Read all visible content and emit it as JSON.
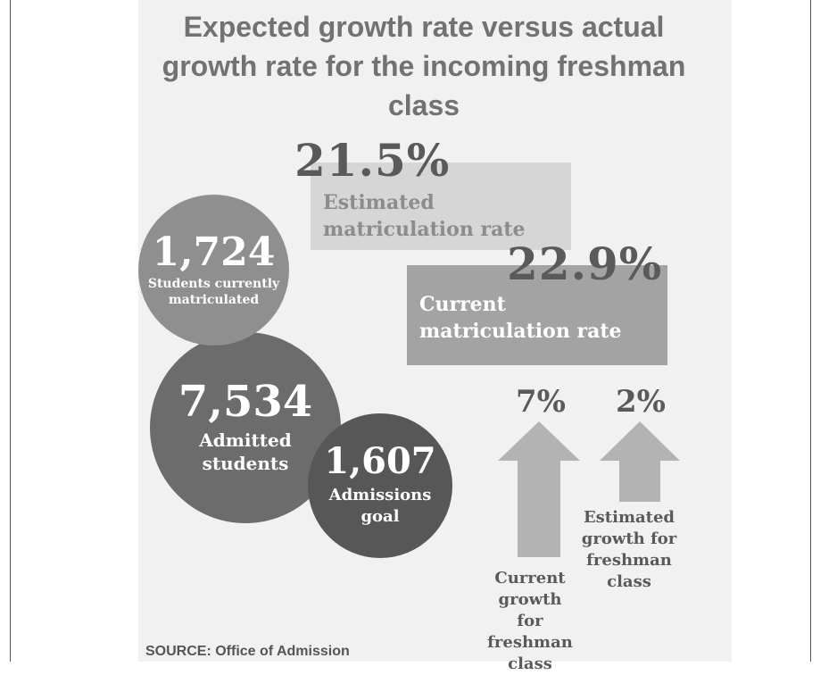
{
  "title_line1": "Expected growth rate versus actual",
  "title_line2": "growth rate for the incoming freshman",
  "title_line3": "class",
  "estimated_rate": {
    "value": "21.5%",
    "label_line1": "Estimated",
    "label_line2": "matriculation rate"
  },
  "current_rate": {
    "value": "22.9%",
    "label_line1": "Current",
    "label_line2": "matriculation rate"
  },
  "matriculated": {
    "value": "1,724",
    "label_line1": "Students currently",
    "label_line2": "matriculated"
  },
  "admitted": {
    "value": "7,534",
    "label_line1": "Admitted",
    "label_line2": "students"
  },
  "goal": {
    "value": "1,607",
    "label_line1": "Admissions",
    "label_line2": "goal"
  },
  "current_growth": {
    "value": "7%",
    "label_line1": "Current",
    "label_line2": "growth for",
    "label_line3": "freshman",
    "label_line4": "class"
  },
  "estimated_growth": {
    "value": "2%",
    "label_line1": "Estimated",
    "label_line2": "growth for",
    "label_line3": "freshman",
    "label_line4": "class"
  },
  "source": "SOURCE: Office of Admission",
  "colors": {
    "panel": "#f1f1f1",
    "estimated_box": "#d6d6d6",
    "current_box": "#a3a3a3",
    "circle_matriculated": "#8f8f8f",
    "circle_admitted": "#6c6c6c",
    "circle_goal": "#575757",
    "arrow": "#b3b3b3"
  }
}
